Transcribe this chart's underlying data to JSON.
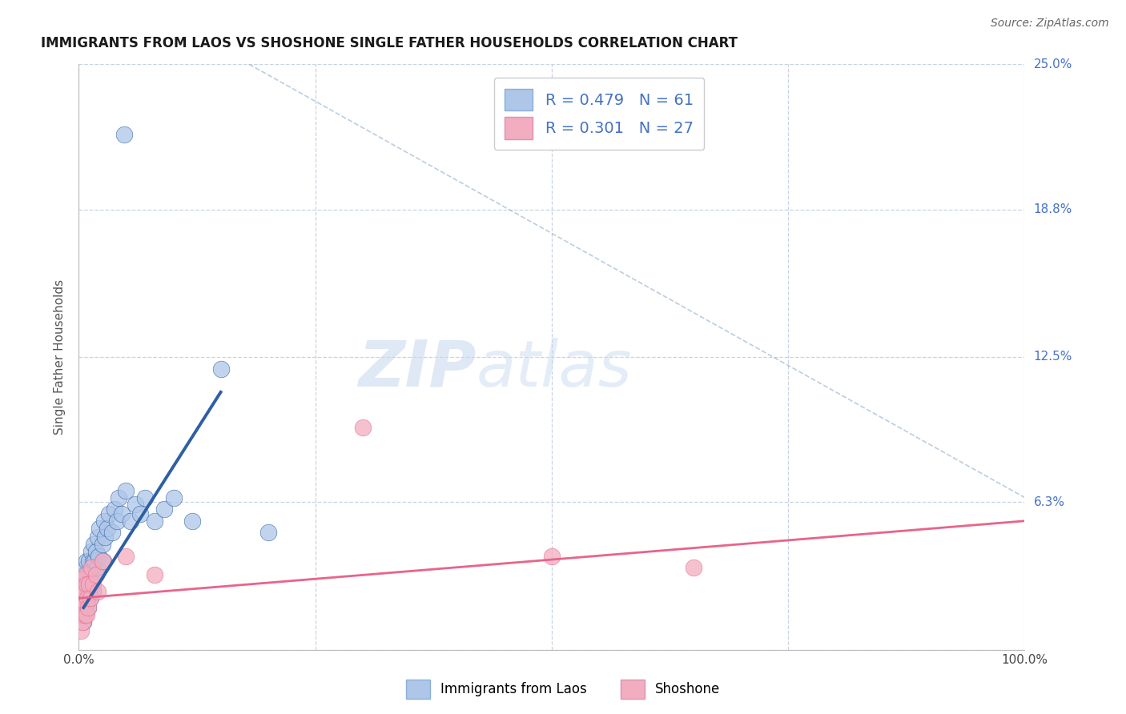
{
  "title": "IMMIGRANTS FROM LAOS VS SHOSHONE SINGLE FATHER HOUSEHOLDS CORRELATION CHART",
  "source": "Source: ZipAtlas.com",
  "ylabel": "Single Father Households",
  "xlim": [
    0,
    1.0
  ],
  "ylim": [
    0,
    0.25
  ],
  "xticks": [
    0.0,
    0.25,
    0.5,
    0.75,
    1.0
  ],
  "xticklabels": [
    "0.0%",
    "",
    "",
    "",
    "100.0%"
  ],
  "ytick_positions": [
    0.0,
    0.063,
    0.125,
    0.188,
    0.25
  ],
  "right_ylabels": [
    "",
    "6.3%",
    "12.5%",
    "18.8%",
    "25.0%"
  ],
  "legend_r1": "R = 0.479",
  "legend_n1": "N = 61",
  "legend_r2": "R = 0.301",
  "legend_n2": "N = 27",
  "color_blue": "#aec6e8",
  "color_pink": "#f2adc0",
  "line_blue": "#2e5fa3",
  "line_pink": "#e8648a",
  "background_color": "#ffffff",
  "grid_color": "#c8d4e4",
  "blue_x": [
    0.002,
    0.003,
    0.003,
    0.004,
    0.004,
    0.005,
    0.005,
    0.005,
    0.006,
    0.006,
    0.006,
    0.007,
    0.007,
    0.007,
    0.008,
    0.008,
    0.008,
    0.009,
    0.009,
    0.01,
    0.01,
    0.011,
    0.011,
    0.012,
    0.012,
    0.013,
    0.013,
    0.014,
    0.015,
    0.015,
    0.016,
    0.016,
    0.017,
    0.018,
    0.019,
    0.02,
    0.021,
    0.022,
    0.025,
    0.026,
    0.027,
    0.028,
    0.03,
    0.032,
    0.035,
    0.038,
    0.04,
    0.042,
    0.045,
    0.048,
    0.05,
    0.055,
    0.06,
    0.065,
    0.07,
    0.08,
    0.09,
    0.1,
    0.12,
    0.15,
    0.2
  ],
  "blue_y": [
    0.02,
    0.015,
    0.025,
    0.018,
    0.03,
    0.012,
    0.02,
    0.028,
    0.015,
    0.022,
    0.032,
    0.018,
    0.025,
    0.035,
    0.02,
    0.028,
    0.038,
    0.022,
    0.032,
    0.018,
    0.028,
    0.025,
    0.038,
    0.022,
    0.032,
    0.028,
    0.042,
    0.035,
    0.025,
    0.038,
    0.032,
    0.045,
    0.038,
    0.042,
    0.035,
    0.048,
    0.04,
    0.052,
    0.045,
    0.038,
    0.055,
    0.048,
    0.052,
    0.058,
    0.05,
    0.06,
    0.055,
    0.065,
    0.058,
    0.22,
    0.068,
    0.055,
    0.062,
    0.058,
    0.065,
    0.055,
    0.06,
    0.065,
    0.055,
    0.12,
    0.05
  ],
  "pink_x": [
    0.002,
    0.003,
    0.003,
    0.004,
    0.004,
    0.005,
    0.005,
    0.006,
    0.006,
    0.007,
    0.007,
    0.008,
    0.008,
    0.009,
    0.01,
    0.011,
    0.012,
    0.013,
    0.015,
    0.018,
    0.02,
    0.025,
    0.05,
    0.08,
    0.3,
    0.5,
    0.65
  ],
  "pink_y": [
    0.008,
    0.015,
    0.022,
    0.012,
    0.025,
    0.018,
    0.03,
    0.015,
    0.025,
    0.02,
    0.032,
    0.015,
    0.028,
    0.022,
    0.018,
    0.028,
    0.022,
    0.035,
    0.028,
    0.032,
    0.025,
    0.038,
    0.04,
    0.032,
    0.095,
    0.04,
    0.035
  ],
  "blue_line_x": [
    0.005,
    0.15
  ],
  "blue_line_y": [
    0.018,
    0.11
  ],
  "pink_line_x": [
    0.0,
    1.0
  ],
  "pink_line_y": [
    0.022,
    0.055
  ],
  "diag_line_x": [
    0.18,
    1.0
  ],
  "diag_line_y": [
    0.25,
    0.065
  ]
}
